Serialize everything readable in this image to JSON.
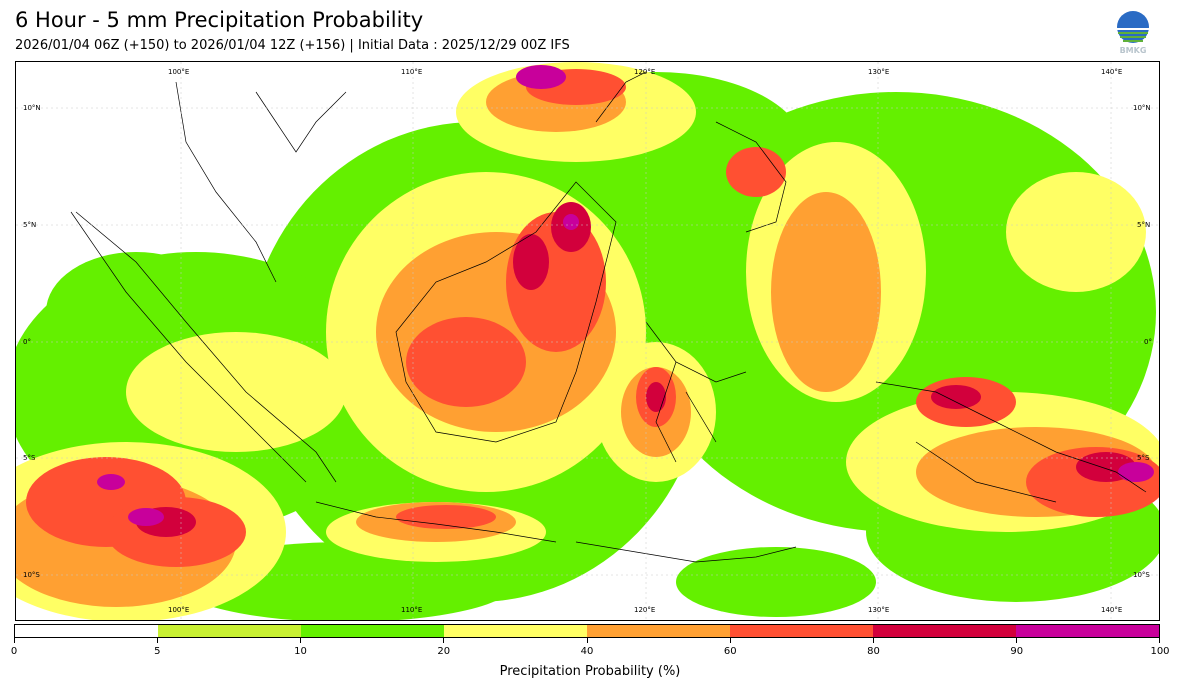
{
  "header": {
    "title": "6 Hour - 5 mm Precipitation Probability",
    "subtitle": "2026/01/04 06Z (+150) to 2026/01/04 12Z (+156) | Initial Data : 2025/12/29 00Z IFS",
    "logo_text": "BMKG"
  },
  "map": {
    "lon_labels": [
      "100°E",
      "110°E",
      "120°E",
      "130°E",
      "140°E"
    ],
    "lat_labels": [
      "10°N",
      "5°N",
      "0°",
      "5°S",
      "10°S"
    ]
  },
  "colorbar": {
    "title": "Precipitation Probability (%)",
    "ticks": [
      "0",
      "5",
      "10",
      "20",
      "40",
      "60",
      "80",
      "90",
      "100"
    ],
    "colors": [
      "#ffffff",
      "#c8f032",
      "#64f000",
      "#ffff64",
      "#ffa032",
      "#ff5032",
      "#d2003c",
      "#c8009b"
    ]
  }
}
